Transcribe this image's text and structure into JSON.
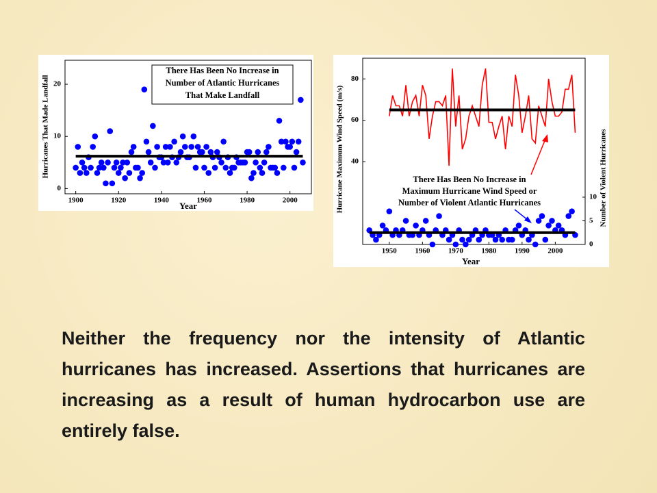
{
  "chart_data": [
    {
      "type": "scatter",
      "x_label": "Year",
      "y_label": "Hurricanes That Made Landfall",
      "annotation": [
        "There Has Been No Increase in",
        "Number of Atlantic Hurricanes",
        "That Make Landfall"
      ],
      "xlim": [
        1895,
        2010
      ],
      "xticks": [
        1900,
        1920,
        1940,
        1960,
        1980,
        2000
      ],
      "ylim": [
        -1,
        24.6
      ],
      "yticks": [
        0,
        10,
        20
      ],
      "series": [
        {
          "type": "scatter",
          "color": "#0000ff",
          "average": 6.2,
          "x": [
            1900,
            1901,
            1902,
            1903,
            1904,
            1905,
            1906,
            1907,
            1908,
            1909,
            1910,
            1911,
            1912,
            1913,
            1914,
            1915,
            1916,
            1917,
            1918,
            1919,
            1920,
            1921,
            1922,
            1923,
            1924,
            1925,
            1926,
            1927,
            1928,
            1929,
            1930,
            1931,
            1932,
            1933,
            1934,
            1935,
            1936,
            1937,
            1938,
            1939,
            1940,
            1941,
            1942,
            1943,
            1944,
            1945,
            1946,
            1947,
            1948,
            1949,
            1950,
            1951,
            1952,
            1953,
            1954,
            1955,
            1956,
            1957,
            1958,
            1959,
            1960,
            1961,
            1962,
            1963,
            1964,
            1965,
            1966,
            1967,
            1968,
            1969,
            1970,
            1971,
            1972,
            1973,
            1974,
            1975,
            1976,
            1977,
            1978,
            1979,
            1980,
            1981,
            1982,
            1983,
            1984,
            1985,
            1986,
            1987,
            1988,
            1989,
            1990,
            1991,
            1992,
            1993,
            1994,
            1995,
            1996,
            1997,
            1998,
            1999,
            2000,
            2001,
            2002,
            2003,
            2004,
            2005,
            2006
          ],
          "values": [
            4,
            8,
            3,
            5,
            4,
            3,
            6,
            4,
            8,
            10,
            3,
            4,
            5,
            4,
            1,
            5,
            11,
            1,
            4,
            5,
            3,
            4,
            5,
            2,
            5,
            3,
            7,
            8,
            4,
            4,
            2,
            3,
            19,
            9,
            7,
            5,
            12,
            4,
            8,
            6,
            6,
            5,
            8,
            5,
            8,
            6,
            9,
            5,
            6,
            7,
            10,
            8,
            6,
            6,
            8,
            10,
            4,
            8,
            7,
            7,
            4,
            8,
            3,
            7,
            6,
            4,
            7,
            6,
            5,
            9,
            4,
            6,
            3,
            4,
            4,
            6,
            5,
            5,
            5,
            5,
            7,
            7,
            2,
            3,
            5,
            7,
            4,
            3,
            5,
            7,
            8,
            4,
            4,
            4,
            3,
            13,
            9,
            4,
            9,
            8,
            8,
            9,
            4,
            7,
            9,
            17,
            5
          ]
        }
      ]
    },
    {
      "type": "line",
      "x_label": "Year",
      "y_label": "Hurricane Maximum Wind Speed (m/s)",
      "y2_label": "Number of Violent Hurricanes",
      "annotation": [
        "There Has Been No Increase in",
        "Maximum Hurricane Wind Speed or",
        "Number of Violent Atlantic Hurricanes"
      ],
      "xlim": [
        1942,
        2009
      ],
      "xticks": [
        1950,
        1960,
        1970,
        1980,
        1990,
        2000
      ],
      "ylim": [
        0,
        90
      ],
      "yticks": [
        40,
        60,
        80
      ],
      "y2lim": [
        0,
        39.4
      ],
      "y2ticks": [
        0,
        5,
        10
      ],
      "series": [
        {
          "type": "line",
          "color": "#ff0000",
          "average": 65,
          "x": [
            1950,
            1951,
            1952,
            1953,
            1954,
            1955,
            1956,
            1957,
            1958,
            1959,
            1960,
            1961,
            1962,
            1963,
            1964,
            1965,
            1966,
            1967,
            1968,
            1969,
            1970,
            1971,
            1972,
            1973,
            1974,
            1975,
            1976,
            1977,
            1978,
            1979,
            1980,
            1981,
            1982,
            1983,
            1984,
            1985,
            1986,
            1987,
            1988,
            1989,
            1990,
            1991,
            1992,
            1993,
            1994,
            1995,
            1996,
            1997,
            1998,
            1999,
            2000,
            2001,
            2002,
            2003,
            2004,
            2005,
            2006
          ],
          "values": [
            62,
            72,
            67,
            67,
            62,
            77,
            62,
            69,
            72,
            62,
            77,
            72,
            51,
            62,
            69,
            69,
            67,
            72,
            38,
            85,
            57,
            72,
            46,
            51,
            62,
            67,
            62,
            57,
            77,
            85,
            59,
            59,
            51,
            57,
            62,
            46,
            62,
            57,
            82,
            72,
            54,
            62,
            72,
            51,
            49,
            67,
            62,
            57,
            80,
            69,
            62,
            62,
            64,
            75,
            75,
            82,
            54
          ]
        },
        {
          "type": "scatter",
          "axis": "y2",
          "color": "#0000ff",
          "average": 2.5,
          "x": [
            1944,
            1945,
            1946,
            1947,
            1948,
            1949,
            1950,
            1951,
            1952,
            1953,
            1954,
            1955,
            1956,
            1957,
            1958,
            1959,
            1960,
            1961,
            1962,
            1963,
            1964,
            1965,
            1966,
            1967,
            1968,
            1969,
            1970,
            1971,
            1972,
            1973,
            1974,
            1975,
            1976,
            1977,
            1978,
            1979,
            1980,
            1981,
            1982,
            1983,
            1984,
            1985,
            1986,
            1987,
            1988,
            1989,
            1990,
            1991,
            1992,
            1993,
            1994,
            1995,
            1996,
            1997,
            1998,
            1999,
            2000,
            2001,
            2002,
            2003,
            2004,
            2005,
            2006
          ],
          "values": [
            3,
            2,
            1,
            2,
            4,
            3,
            7,
            2,
            3,
            2,
            3,
            5,
            2,
            2,
            4,
            2,
            3,
            5,
            2,
            0,
            3,
            6,
            2,
            3,
            1,
            2,
            0,
            3,
            1,
            0,
            1,
            2,
            3,
            1,
            2,
            3,
            2,
            2,
            1,
            2,
            1,
            3,
            1,
            1,
            3,
            4,
            2,
            3,
            1,
            2,
            0,
            5,
            6,
            1,
            4,
            5,
            3,
            4,
            3,
            2,
            6,
            7,
            2
          ]
        }
      ]
    }
  ],
  "body_text": "Neither the frequency nor the intensity of Atlantic hurricanes has increased. Assertions that hurricanes are increasing as a result of human hydrocarbon use are entirely false."
}
